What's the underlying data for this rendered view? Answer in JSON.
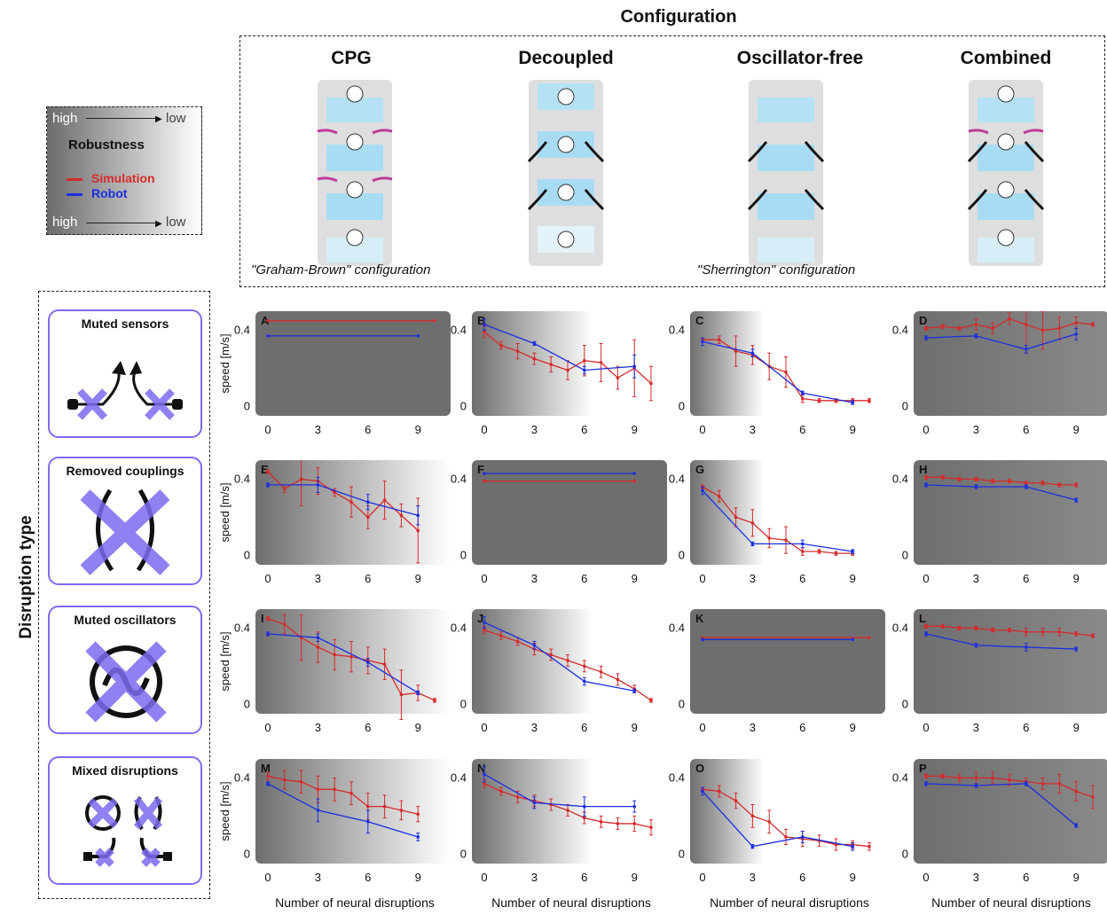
{
  "header": {
    "title": "Configuration"
  },
  "configs": [
    {
      "name": "CPG",
      "caption": "\"Graham-Brown\" configuration"
    },
    {
      "name": "Decoupled",
      "caption": ""
    },
    {
      "name": "Oscillator-free",
      "caption": "\"Sherrington\" configuration"
    },
    {
      "name": "Combined",
      "caption": ""
    }
  ],
  "legend": {
    "high_top": "high",
    "low_top": "low",
    "title": "Robustness",
    "sim": "Simulation",
    "robot": "Robot",
    "high_bottom": "high",
    "low_bottom": "low",
    "sim_color": "#d62a2a",
    "robot_color": "#1a2fe0"
  },
  "disruption": {
    "title": "Disruption type",
    "types": [
      "Muted sensors",
      "Removed couplings",
      "Muted oscillators",
      "Mixed disruptions"
    ]
  },
  "axes": {
    "ylabel": "speed [m/s]",
    "xlabel": "Number of neural disruptions",
    "yticks": [
      "0.4",
      "0"
    ],
    "xticks": [
      "0",
      "3",
      "6",
      "9"
    ]
  },
  "chart_data": [
    {
      "type": "line",
      "panel": "A",
      "robustness": "high",
      "sim": {
        "x": [
          0,
          10
        ],
        "y": [
          0.45,
          0.45
        ]
      },
      "robot": {
        "x": [
          0,
          9
        ],
        "y": [
          0.37,
          0.37
        ]
      }
    },
    {
      "type": "line",
      "panel": "B",
      "robustness": "gradient",
      "sim": {
        "x": [
          0,
          1,
          2,
          3,
          4,
          5,
          6,
          7,
          8,
          9,
          10
        ],
        "y": [
          0.39,
          0.32,
          0.29,
          0.25,
          0.22,
          0.19,
          0.24,
          0.23,
          0.15,
          0.2,
          0.12
        ],
        "err": [
          0.03,
          0.02,
          0.04,
          0.03,
          0.04,
          0.05,
          0.08,
          0.1,
          0.06,
          0.15,
          0.09
        ]
      },
      "robot": {
        "x": [
          0,
          3,
          6,
          9
        ],
        "y": [
          0.43,
          0.33,
          0.19,
          0.21
        ],
        "err": [
          0.03,
          0.01,
          0.02,
          0.06
        ]
      }
    },
    {
      "type": "line",
      "panel": "C",
      "robustness": "gradient",
      "sim": {
        "x": [
          0,
          1,
          2,
          3,
          4,
          5,
          6,
          7,
          8,
          9,
          10
        ],
        "y": [
          0.35,
          0.35,
          0.29,
          0.27,
          0.21,
          0.18,
          0.04,
          0.03,
          0.03,
          0.03,
          0.03
        ],
        "err": [
          0.01,
          0.02,
          0.08,
          0.05,
          0.07,
          0.08,
          0.02,
          0.01,
          0.01,
          0.01,
          0.01
        ]
      },
      "robot": {
        "x": [
          0,
          3,
          6,
          9
        ],
        "y": [
          0.34,
          0.28,
          0.07,
          0.02
        ],
        "err": [
          0.02,
          0.02,
          0.01,
          0.01
        ]
      }
    },
    {
      "type": "line",
      "panel": "D",
      "robustness": "gradient",
      "sim": {
        "x": [
          0,
          1,
          2,
          3,
          4,
          5,
          6,
          7,
          8,
          9,
          10
        ],
        "y": [
          0.41,
          0.42,
          0.41,
          0.43,
          0.41,
          0.46,
          0.43,
          0.4,
          0.41,
          0.44,
          0.43
        ],
        "err": [
          0.01,
          0.01,
          0.01,
          0.03,
          0.03,
          0.03,
          0.15,
          0.1,
          0.06,
          0.03,
          0.01
        ]
      },
      "robot": {
        "x": [
          0,
          3,
          6,
          9
        ],
        "y": [
          0.36,
          0.37,
          0.3,
          0.38
        ],
        "err": [
          0.01,
          0.01,
          0.02,
          0.03
        ]
      }
    },
    {
      "type": "line",
      "panel": "E",
      "robustness": "gradient",
      "sim": {
        "x": [
          0,
          1,
          2,
          3,
          4,
          5,
          6,
          7,
          8,
          9
        ],
        "y": [
          0.44,
          0.35,
          0.4,
          0.39,
          0.33,
          0.28,
          0.2,
          0.29,
          0.21,
          0.13
        ],
        "err": [
          0.01,
          0.02,
          0.14,
          0.07,
          0.02,
          0.08,
          0.06,
          0.1,
          0.06,
          0.17
        ]
      },
      "robot": {
        "x": [
          0,
          3,
          6,
          9
        ],
        "y": [
          0.37,
          0.37,
          0.28,
          0.21
        ],
        "err": [
          0.01,
          0.04,
          0.04,
          0.05
        ]
      }
    },
    {
      "type": "line",
      "panel": "F",
      "robustness": "high",
      "sim": {
        "x": [
          0,
          9
        ],
        "y": [
          0.39,
          0.39
        ]
      },
      "robot": {
        "x": [
          0,
          9
        ],
        "y": [
          0.43,
          0.43
        ]
      }
    },
    {
      "type": "line",
      "panel": "G",
      "robustness": "gradient",
      "sim": {
        "x": [
          0,
          1,
          2,
          3,
          4,
          5,
          6,
          7,
          8,
          9
        ],
        "y": [
          0.36,
          0.31,
          0.2,
          0.17,
          0.09,
          0.08,
          0.02,
          0.02,
          0.01,
          0.01
        ],
        "err": [
          0.01,
          0.03,
          0.05,
          0.07,
          0.05,
          0.07,
          0.02,
          0.01,
          0.01,
          0.01
        ]
      },
      "robot": {
        "x": [
          0,
          3,
          6,
          9
        ],
        "y": [
          0.34,
          0.06,
          0.06,
          0.02
        ],
        "err": [
          0.02,
          0.01,
          0.02,
          0.01
        ]
      }
    },
    {
      "type": "line",
      "panel": "H",
      "robustness": "gradient",
      "sim": {
        "x": [
          0,
          1,
          2,
          3,
          4,
          5,
          6,
          7,
          8,
          9
        ],
        "y": [
          0.41,
          0.41,
          0.4,
          0.4,
          0.39,
          0.39,
          0.38,
          0.38,
          0.37,
          0.37
        ],
        "err": [
          0.01,
          0.01,
          0.01,
          0.01,
          0.01,
          0.01,
          0.01,
          0.01,
          0.01,
          0.01
        ]
      },
      "robot": {
        "x": [
          0,
          3,
          6,
          9
        ],
        "y": [
          0.37,
          0.36,
          0.36,
          0.29
        ],
        "err": [
          0.01,
          0.01,
          0.01,
          0.01
        ]
      }
    },
    {
      "type": "line",
      "panel": "I",
      "robustness": "gradient",
      "sim": {
        "x": [
          0,
          1,
          2,
          3,
          4,
          5,
          6,
          7,
          8,
          9,
          10
        ],
        "y": [
          0.45,
          0.42,
          0.35,
          0.3,
          0.26,
          0.25,
          0.23,
          0.21,
          0.05,
          0.06,
          0.02
        ],
        "err": [
          0.01,
          0.05,
          0.12,
          0.08,
          0.08,
          0.08,
          0.07,
          0.08,
          0.13,
          0.04,
          0.01
        ]
      },
      "robot": {
        "x": [
          0,
          3,
          6,
          9
        ],
        "y": [
          0.37,
          0.35,
          0.22,
          0.06
        ],
        "err": [
          0.01,
          0.02,
          0.02,
          0.01
        ]
      }
    },
    {
      "type": "line",
      "panel": "J",
      "robustness": "gradient",
      "sim": {
        "x": [
          0,
          1,
          2,
          3,
          4,
          5,
          6,
          7,
          8,
          9,
          10
        ],
        "y": [
          0.39,
          0.36,
          0.33,
          0.29,
          0.26,
          0.23,
          0.2,
          0.17,
          0.13,
          0.08,
          0.02
        ],
        "err": [
          0.02,
          0.02,
          0.02,
          0.03,
          0.03,
          0.03,
          0.03,
          0.03,
          0.03,
          0.02,
          0.01
        ]
      },
      "robot": {
        "x": [
          0,
          3,
          6,
          9
        ],
        "y": [
          0.43,
          0.31,
          0.12,
          0.07
        ],
        "err": [
          0.03,
          0.02,
          0.02,
          0.01
        ]
      }
    },
    {
      "type": "line",
      "panel": "K",
      "robustness": "high",
      "sim": {
        "x": [
          0,
          10
        ],
        "y": [
          0.35,
          0.35
        ]
      },
      "robot": {
        "x": [
          0,
          9
        ],
        "y": [
          0.34,
          0.34
        ]
      }
    },
    {
      "type": "line",
      "panel": "L",
      "robustness": "gradient",
      "sim": {
        "x": [
          0,
          1,
          2,
          3,
          4,
          5,
          6,
          7,
          8,
          9,
          10
        ],
        "y": [
          0.41,
          0.41,
          0.4,
          0.4,
          0.39,
          0.39,
          0.38,
          0.38,
          0.38,
          0.37,
          0.36
        ],
        "err": [
          0.01,
          0.01,
          0.01,
          0.01,
          0.01,
          0.01,
          0.02,
          0.02,
          0.02,
          0.01,
          0.01
        ]
      },
      "robot": {
        "x": [
          0,
          3,
          6,
          9
        ],
        "y": [
          0.37,
          0.31,
          0.3,
          0.29
        ],
        "err": [
          0.01,
          0.01,
          0.02,
          0.01
        ]
      }
    },
    {
      "type": "line",
      "panel": "M",
      "robustness": "gradient",
      "sim": {
        "x": [
          0,
          1,
          2,
          3,
          4,
          5,
          6,
          7,
          8,
          9
        ],
        "y": [
          0.41,
          0.39,
          0.38,
          0.34,
          0.34,
          0.32,
          0.25,
          0.25,
          0.23,
          0.21
        ],
        "err": [
          0.02,
          0.05,
          0.06,
          0.07,
          0.06,
          0.06,
          0.07,
          0.06,
          0.05,
          0.04
        ]
      },
      "robot": {
        "x": [
          0,
          3,
          6,
          9
        ],
        "y": [
          0.37,
          0.23,
          0.17,
          0.09
        ],
        "err": [
          0.01,
          0.06,
          0.06,
          0.02
        ]
      }
    },
    {
      "type": "line",
      "panel": "N",
      "robustness": "gradient",
      "sim": {
        "x": [
          0,
          1,
          2,
          3,
          4,
          5,
          6,
          7,
          8,
          9,
          10
        ],
        "y": [
          0.37,
          0.33,
          0.3,
          0.28,
          0.26,
          0.23,
          0.19,
          0.17,
          0.16,
          0.16,
          0.14
        ],
        "err": [
          0.02,
          0.02,
          0.03,
          0.03,
          0.03,
          0.03,
          0.03,
          0.03,
          0.03,
          0.04,
          0.04
        ]
      },
      "robot": {
        "x": [
          0,
          3,
          6,
          9
        ],
        "y": [
          0.42,
          0.27,
          0.25,
          0.25
        ],
        "err": [
          0.04,
          0.03,
          0.05,
          0.03
        ]
      }
    },
    {
      "type": "line",
      "panel": "O",
      "robustness": "gradient",
      "sim": {
        "x": [
          0,
          1,
          2,
          3,
          4,
          5,
          6,
          7,
          8,
          9,
          10
        ],
        "y": [
          0.34,
          0.33,
          0.28,
          0.2,
          0.17,
          0.09,
          0.08,
          0.07,
          0.05,
          0.05,
          0.04
        ],
        "err": [
          0.01,
          0.03,
          0.04,
          0.06,
          0.06,
          0.04,
          0.04,
          0.03,
          0.03,
          0.02,
          0.02
        ]
      },
      "robot": {
        "x": [
          0,
          3,
          6,
          9
        ],
        "y": [
          0.33,
          0.04,
          0.09,
          0.04
        ],
        "err": [
          0.02,
          0.01,
          0.03,
          0.02
        ]
      }
    },
    {
      "type": "line",
      "panel": "P",
      "robustness": "gradient",
      "sim": {
        "x": [
          0,
          1,
          2,
          3,
          4,
          5,
          6,
          7,
          8,
          9,
          10
        ],
        "y": [
          0.41,
          0.41,
          0.4,
          0.4,
          0.4,
          0.39,
          0.38,
          0.37,
          0.37,
          0.33,
          0.3
        ],
        "err": [
          0.01,
          0.01,
          0.02,
          0.03,
          0.03,
          0.03,
          0.02,
          0.03,
          0.05,
          0.05,
          0.06
        ]
      },
      "robot": {
        "x": [
          0,
          3,
          6,
          9
        ],
        "y": [
          0.37,
          0.36,
          0.37,
          0.15
        ],
        "err": [
          0.01,
          0.01,
          0.01,
          0.01
        ]
      }
    }
  ]
}
